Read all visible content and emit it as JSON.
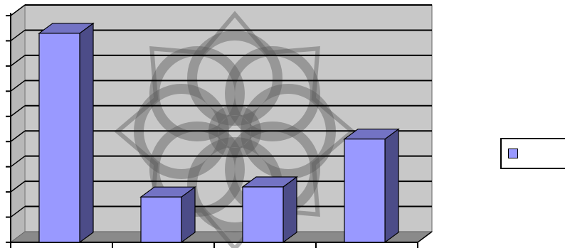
{
  "colors": {
    "bar_front": "#9999ff",
    "bar_side": "#4c4c88",
    "bar_top": "#7373c4",
    "wall": "#c8c8c8",
    "floor": "#8a8a8a",
    "grid": "#000000",
    "watermark": "#5a5a5a"
  },
  "watermark_icon": "ornamental-star-watermark-icon",
  "chart_data": {
    "type": "bar",
    "categories": [
      "",
      "",
      "",
      ""
    ],
    "values": [
      8.3,
      1.8,
      2.2,
      4.1
    ],
    "ylim": [
      0,
      9
    ],
    "yticks": [
      0,
      1,
      2,
      3,
      4,
      5,
      6,
      7,
      8,
      9
    ],
    "grid": true,
    "legend_position": "right",
    "series": [
      {
        "values": [
          8.3,
          1.8,
          2.2,
          4.1
        ],
        "color": "#9999ff"
      }
    ]
  },
  "legend": {
    "entries": [
      {
        "label": ""
      }
    ]
  }
}
